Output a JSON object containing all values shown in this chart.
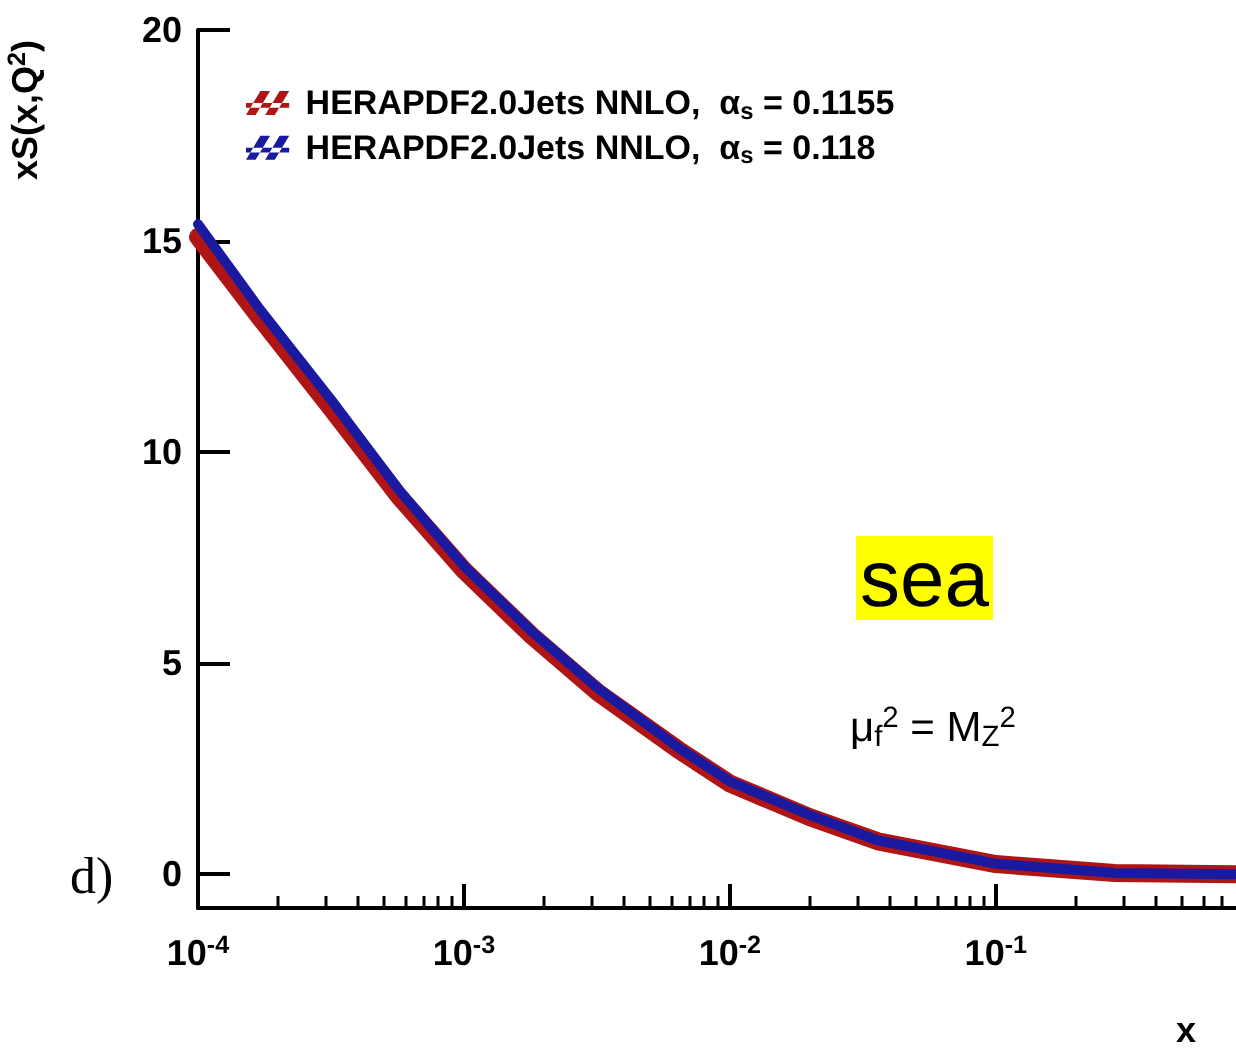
{
  "chart_data": {
    "type": "line",
    "xlabel": "x",
    "ylabel": "xS(x,Q$^{2}$)",
    "x": [
      0.0001,
      0.00017,
      0.00032,
      0.00057,
      0.001,
      0.0018,
      0.0032,
      0.0064,
      0.01,
      0.02,
      0.036,
      0.1,
      0.28,
      0.8
    ],
    "series": [
      {
        "name": "HERAPDF2.0Jets NNLO,  α$_{s}$ = 0.1155",
        "color": "#b01515",
        "values": [
          15.1,
          13.2,
          11.0,
          8.95,
          7.2,
          5.65,
          4.3,
          2.95,
          2.15,
          1.35,
          0.78,
          0.24,
          0.03,
          0
        ]
      },
      {
        "name": "HERAPDF2.0Jets NNLO,  α$_{s}$ = 0.118",
        "color": "#1a1aa0",
        "values": [
          15.4,
          13.4,
          11.2,
          9.1,
          7.3,
          5.75,
          4.4,
          3.0,
          2.2,
          1.4,
          0.8,
          0.25,
          0.03,
          0
        ]
      }
    ],
    "log": "x",
    "xlim": [
      0.0001,
      0.8
    ],
    "xticks": [
      {
        "value": 0.0001,
        "label": "10$^{-4}$"
      },
      {
        "value": 0.001,
        "label": "10$^{-3}$"
      },
      {
        "value": 0.01,
        "label": "10$^{-2}$"
      },
      {
        "value": 0.1,
        "label": "10$^{-1}$"
      }
    ],
    "ylim": [
      -0.8,
      20
    ],
    "yticks": [
      0,
      5,
      10,
      15,
      20
    ],
    "grid": false,
    "legend": "top left",
    "marker": "none",
    "line_style": "solid",
    "annotations": [
      "sea",
      "μ$_{f}$$^{2}$ = M$_{Z}$$^{2}$",
      "d)"
    ]
  }
}
